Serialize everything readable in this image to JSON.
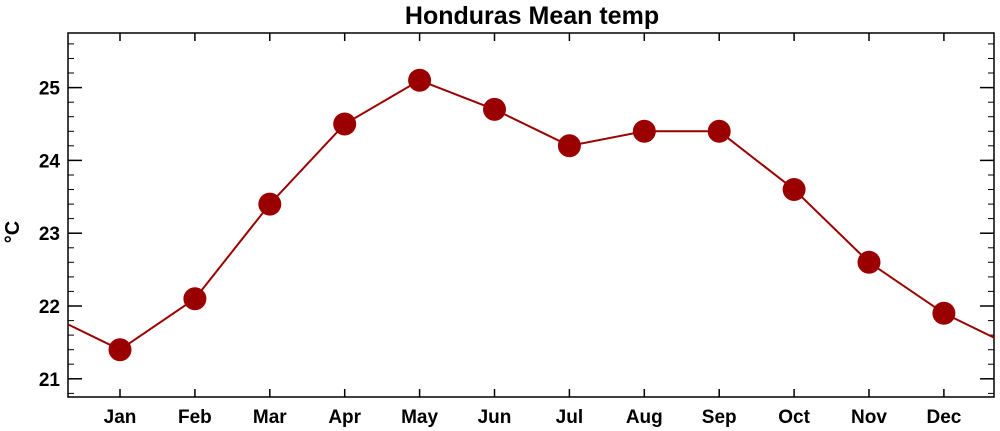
{
  "chart_data": {
    "type": "line",
    "title": "Honduras Mean temp",
    "xlabel": "",
    "ylabel": "°C",
    "categories": [
      "Jan",
      "Feb",
      "Mar",
      "Apr",
      "May",
      "Jun",
      "Jul",
      "Aug",
      "Sep",
      "Oct",
      "Nov",
      "Dec"
    ],
    "series": [
      {
        "values": [
          21.4,
          22.1,
          23.4,
          24.5,
          25.1,
          24.7,
          24.2,
          24.4,
          24.4,
          23.6,
          22.6,
          21.9
        ]
      }
    ],
    "ylim": [
      20.75,
      25.75
    ],
    "yticks": [
      21,
      22,
      23,
      24,
      25
    ],
    "y_minor_step": 0.2,
    "grid": false,
    "cyclic_wraparound": true,
    "colors": {
      "line": "#9b0000",
      "marker": "#9b0000"
    }
  }
}
